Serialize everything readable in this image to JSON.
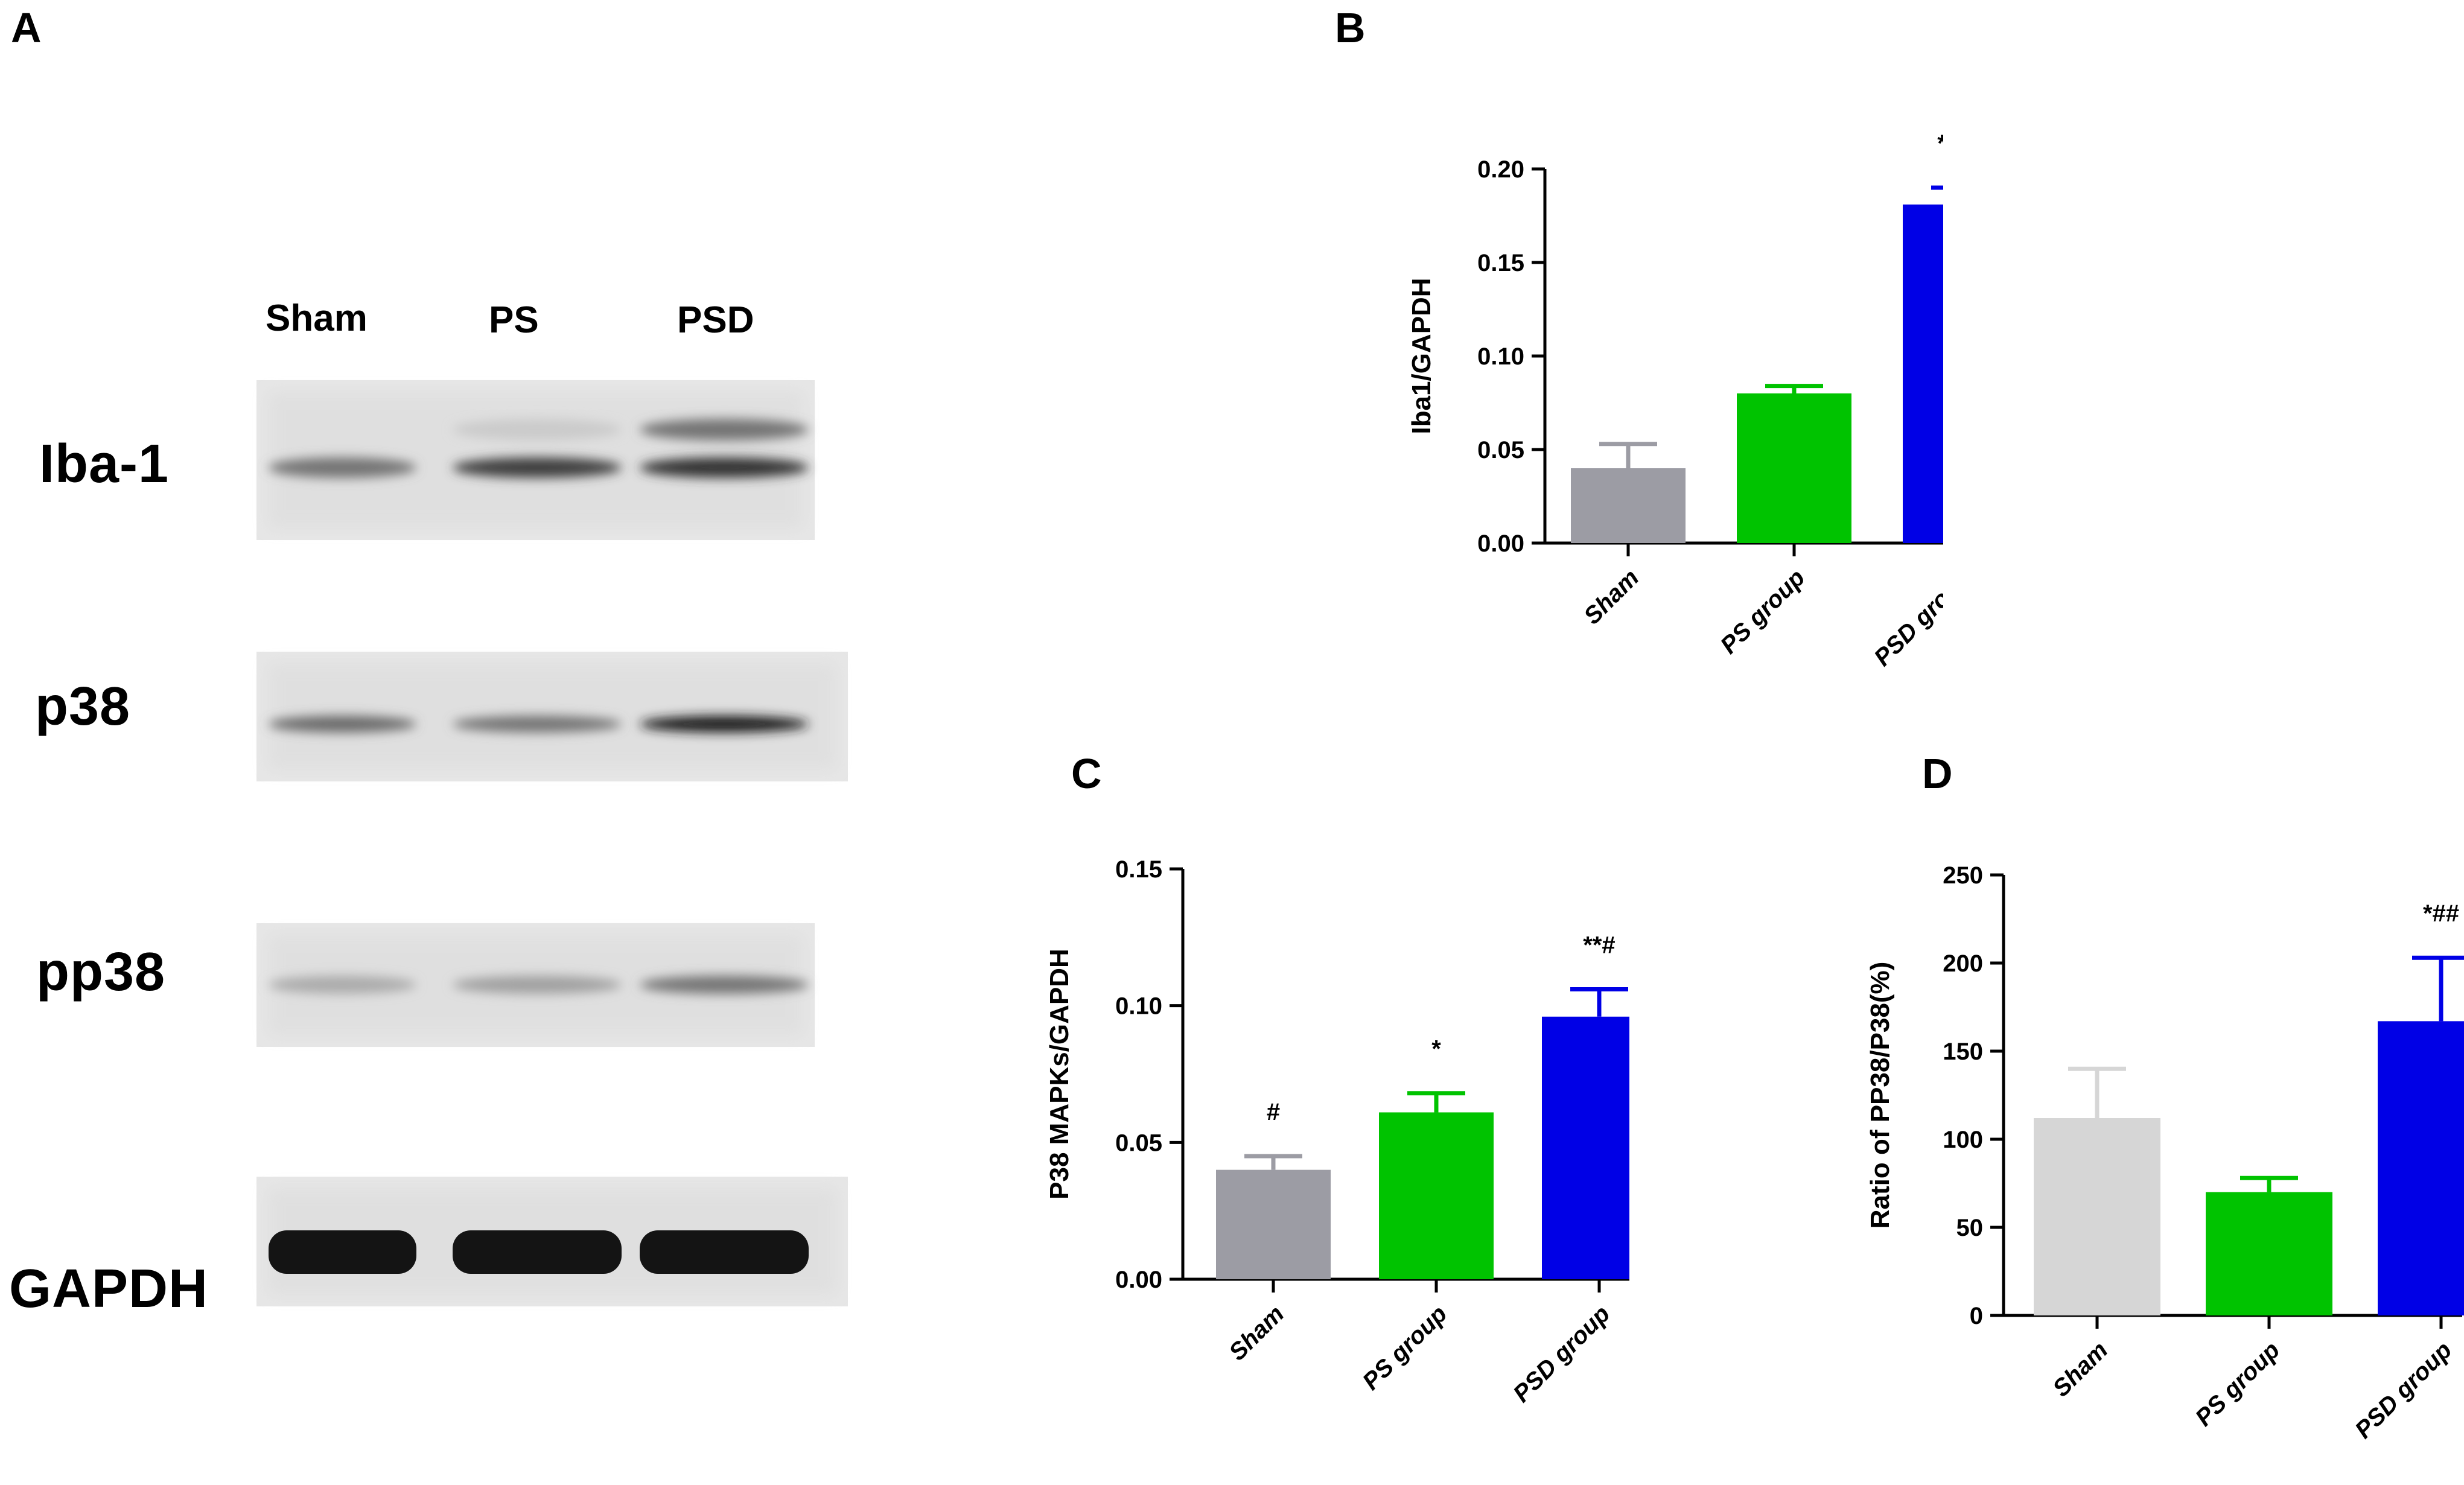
{
  "panels": {
    "a_label": "A",
    "b_label": "B",
    "c_label": "C",
    "d_label": "D"
  },
  "blot": {
    "lanes": [
      "Sham",
      "PS",
      "PSD"
    ],
    "rows": [
      {
        "label": "Iba-1",
        "band_intensity": [
          0.55,
          0.8,
          0.85
        ],
        "upper_band_intensity": [
          0.0,
          0.15,
          0.55
        ]
      },
      {
        "label": "p38",
        "band_intensity": [
          0.6,
          0.55,
          0.95
        ],
        "upper_band_intensity": [
          0,
          0,
          0
        ]
      },
      {
        "label": "pp38",
        "band_intensity": [
          0.3,
          0.35,
          0.55
        ],
        "upper_band_intensity": [
          0,
          0,
          0
        ]
      },
      {
        "label": "GAPDH",
        "band_intensity": [
          1.0,
          1.0,
          1.0
        ],
        "upper_band_intensity": [
          0,
          0,
          0
        ]
      }
    ]
  },
  "chart_data": [
    {
      "id": "B",
      "type": "bar",
      "categories": [
        "Sham",
        "PS group",
        "PSD group"
      ],
      "values": [
        0.04,
        0.08,
        0.181
      ],
      "errors": [
        0.013,
        0.004,
        0.009
      ],
      "colors": [
        "#9c9ca4",
        "#00c300",
        "#0000e6"
      ],
      "annotations": [
        "",
        "",
        "**##"
      ],
      "ylabel": "Iba1/GAPDH",
      "ylim": [
        0,
        0.2
      ],
      "yticks": [
        "0.00",
        "0.05",
        "0.10",
        "0.15",
        "0.20"
      ],
      "grid": false
    },
    {
      "id": "C",
      "type": "bar",
      "categories": [
        "Sham",
        "PS group",
        "PSD group"
      ],
      "values": [
        0.04,
        0.061,
        0.096
      ],
      "errors": [
        0.005,
        0.007,
        0.01
      ],
      "colors": [
        "#9c9ca4",
        "#00c300",
        "#0000e6"
      ],
      "annotations": [
        "#",
        "*",
        "**#"
      ],
      "ylabel": "P38 MAPKs/GAPDH",
      "ylim": [
        0,
        0.15
      ],
      "yticks": [
        "0.00",
        "0.05",
        "0.10",
        "0.15"
      ],
      "grid": false
    },
    {
      "id": "D",
      "type": "bar",
      "categories": [
        "Sham",
        "PS group",
        "PSD group"
      ],
      "values": [
        112,
        70,
        167
      ],
      "errors": [
        28,
        8,
        36
      ],
      "colors": [
        "#d6d6d6",
        "#00c300",
        "#0000e6"
      ],
      "annotations": [
        "",
        "",
        "*##"
      ],
      "ylabel": "Ratio of PP38/P38(%)",
      "ylim": [
        0,
        250
      ],
      "yticks": [
        "0",
        "50",
        "100",
        "150",
        "200",
        "250"
      ],
      "grid": false
    }
  ]
}
